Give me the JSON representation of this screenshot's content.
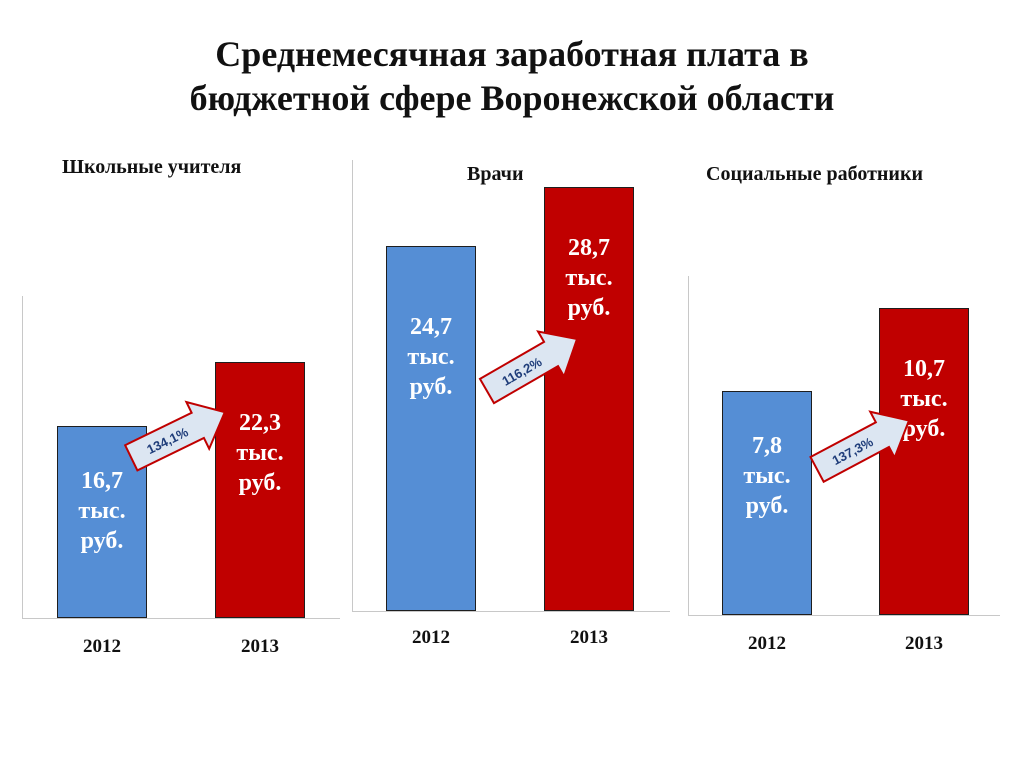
{
  "title": {
    "line1": "Среднемесячная заработная плата в",
    "line2": "бюджетной сфере Воронежской области"
  },
  "colors": {
    "bar_2012": "#558ed5",
    "bar_2013": "#c00000",
    "arrow_fill": "#dce6f2",
    "arrow_stroke": "#c00000",
    "arrow_text": "#1f3d7a"
  },
  "chart_data": [
    {
      "type": "bar",
      "title": "Школьные учителя",
      "categories": [
        "2012",
        "2013"
      ],
      "values": [
        16.7,
        22.3
      ],
      "unit": "тыс. руб.",
      "data_labels": [
        [
          "16,7",
          "тыс.",
          "руб."
        ],
        [
          "22,3",
          "тыс.",
          "руб."
        ]
      ],
      "growth_label": "134,1%",
      "ylim": [
        0,
        28
      ]
    },
    {
      "type": "bar",
      "title": "Врачи",
      "categories": [
        "2012",
        "2013"
      ],
      "values": [
        24.7,
        28.7
      ],
      "unit": "тыс. руб.",
      "data_labels": [
        [
          "24,7",
          "тыс.",
          "руб."
        ],
        [
          "28,7",
          "тыс.",
          "руб."
        ]
      ],
      "growth_label": "116,2%",
      "ylim": [
        0,
        30.5
      ]
    },
    {
      "type": "bar",
      "title": "Социальные работники",
      "categories": [
        "2012",
        "2013"
      ],
      "values": [
        7.8,
        10.7
      ],
      "unit": "тыс. руб.",
      "data_labels": [
        [
          "7,8",
          "тыс.",
          "руб."
        ],
        [
          "10,7",
          "тыс.",
          "руб."
        ]
      ],
      "growth_label": "137,3%",
      "ylim": [
        0,
        11.8
      ]
    }
  ]
}
